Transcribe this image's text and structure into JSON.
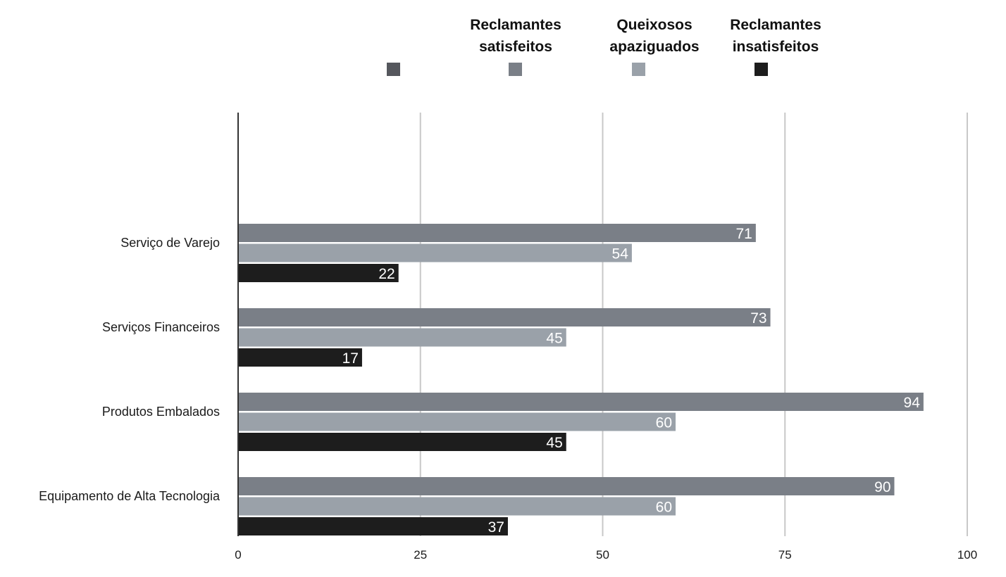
{
  "chart_data": {
    "type": "bar",
    "orientation": "horizontal",
    "title": "",
    "xlabel": "",
    "ylabel": "",
    "xlim": [
      0,
      100
    ],
    "xticks": [
      0,
      25,
      50,
      75,
      100
    ],
    "grid": true,
    "legend_position": "top",
    "categories": [
      "Serviço de Varejo",
      "Serviços Financeiros",
      "Produtos Embalados",
      "Equipamento de Alta Tecnologia"
    ],
    "legend": [
      {
        "label": "",
        "color": "#55575d"
      },
      {
        "label_line1": "Reclamantes",
        "label_line2": "satisfeitos",
        "color": "#7a7f87"
      },
      {
        "label_line1": "Queixosos",
        "label_line2": "apaziguados",
        "color": "#9aa1a9"
      },
      {
        "label_line1": "Reclamantes",
        "label_line2": "insatisfeitos",
        "color": "#1d1d1d"
      }
    ],
    "series": [
      {
        "name": "Reclamantes satisfeitos",
        "color": "#7a7f87",
        "values": [
          71,
          73,
          94,
          90
        ]
      },
      {
        "name": "Queixosos apaziguados",
        "color": "#9aa1a9",
        "values": [
          54,
          45,
          60,
          60
        ]
      },
      {
        "name": "Reclamantes insatisfeitos",
        "color": "#1d1d1d",
        "values": [
          22,
          17,
          45,
          37
        ]
      }
    ]
  }
}
